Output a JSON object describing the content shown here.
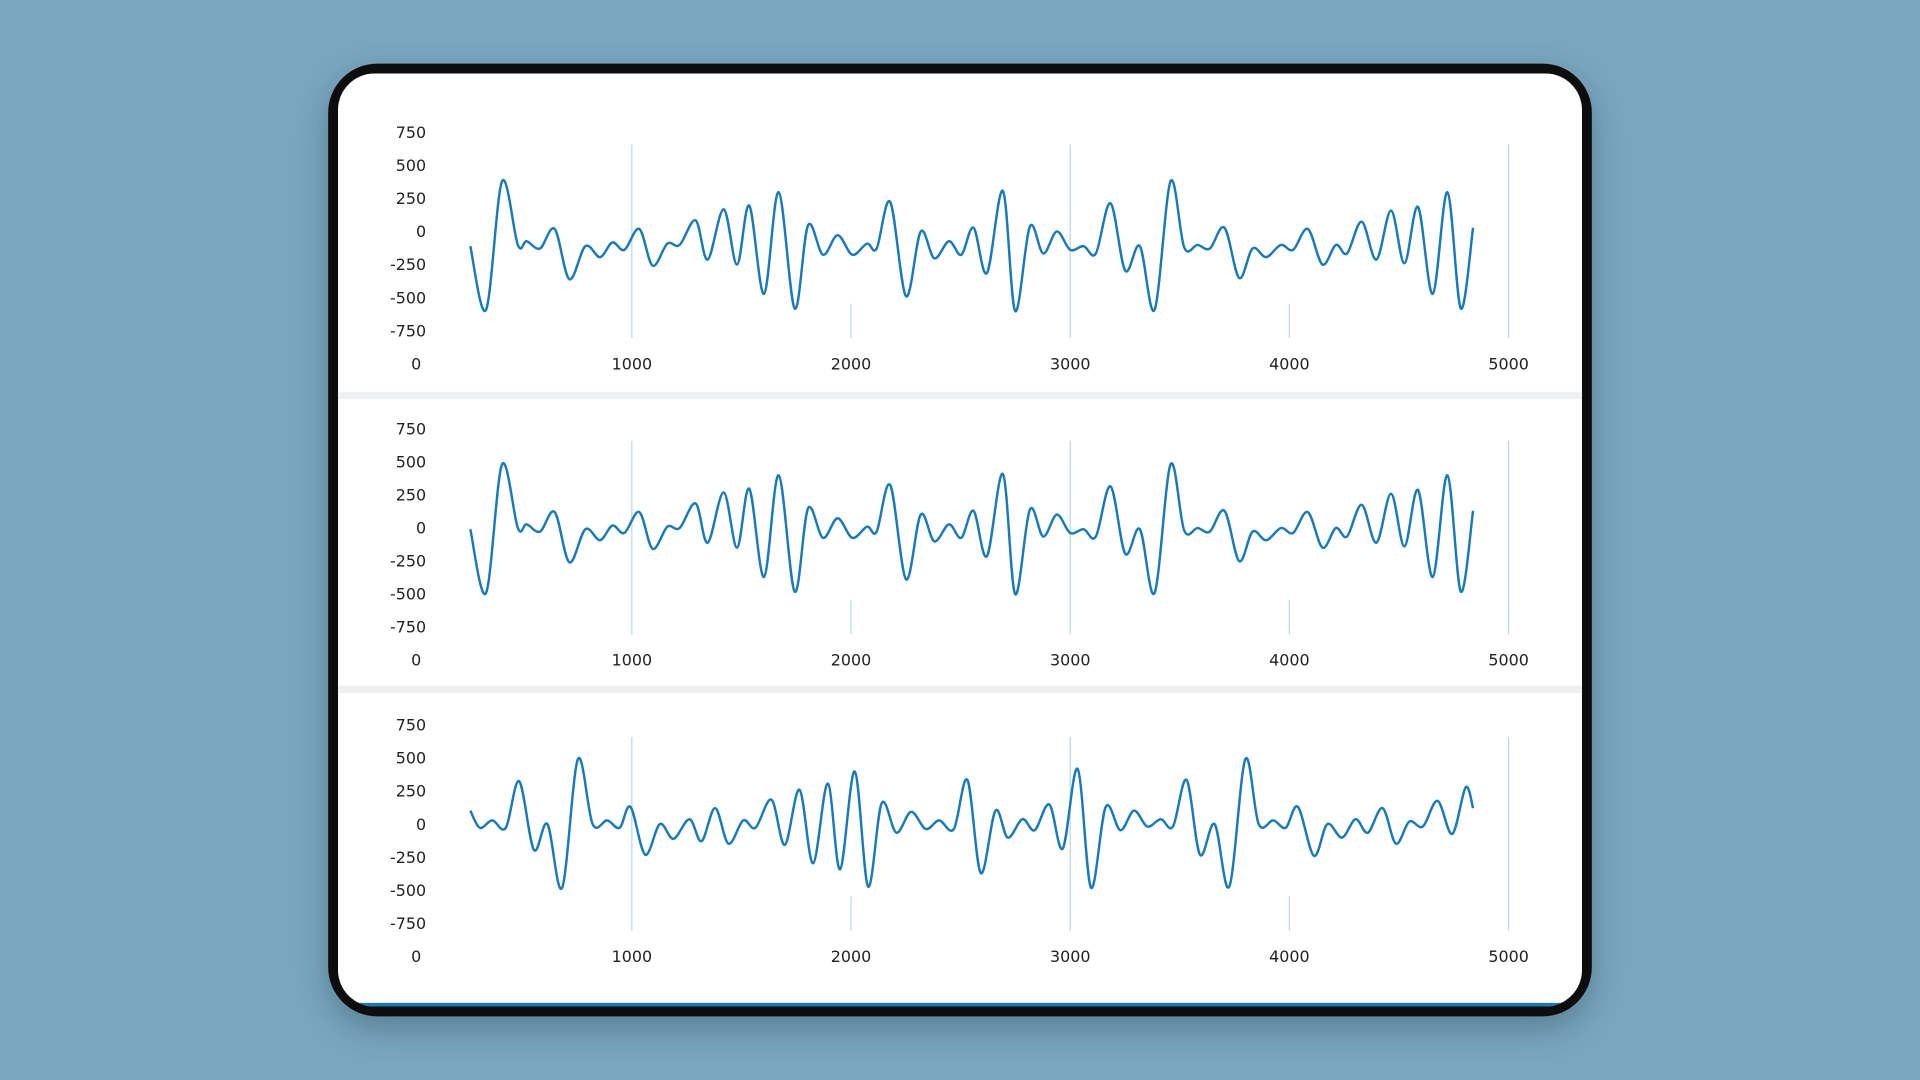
{
  "chart_data": [
    {
      "type": "line",
      "x": [
        263,
        335,
        408,
        480,
        520,
        581,
        648,
        715,
        788,
        855,
        911,
        966,
        1034,
        1095,
        1162,
        1218,
        1291,
        1346,
        1419,
        1480,
        1536,
        1603,
        1670,
        1743,
        1804,
        1872,
        1939,
        2006,
        2073,
        2117,
        2179,
        2251,
        2318,
        2380,
        2447,
        2503,
        2559,
        2620,
        2693,
        2749,
        2816,
        2877,
        2939,
        3000,
        3061,
        3117,
        3184,
        3251,
        3318,
        3385,
        3458,
        3520,
        3581,
        3637,
        3704,
        3771,
        3832,
        3894,
        3961,
        4017,
        4084,
        4151,
        4212,
        4263,
        4330,
        4397,
        4464,
        4525,
        4587,
        4654,
        4721,
        4782,
        4838
      ],
      "series": [
        {
          "color": "#1a7ab5",
          "values": [
            -102,
            -583,
            389,
            -93,
            -65,
            -120,
            28,
            -352,
            -102,
            -185,
            -74,
            -130,
            28,
            -250,
            -83,
            -93,
            93,
            -204,
            176,
            -241,
            204,
            -463,
            306,
            -574,
            56,
            -167,
            -19,
            -167,
            -83,
            -120,
            232,
            -481,
            9,
            -194,
            -65,
            -167,
            37,
            -306,
            315,
            -593,
            46,
            -157,
            9,
            -130,
            -102,
            -157,
            222,
            -287,
            -102,
            -583,
            389,
            -111,
            -93,
            -120,
            37,
            -343,
            -120,
            -185,
            -93,
            -130,
            28,
            -241,
            -93,
            -157,
            83,
            -204,
            167,
            -231,
            194,
            -463,
            306,
            -574,
            37
          ]
        }
      ],
      "xlim": [
        0,
        5000
      ],
      "ylim": [
        -750,
        750
      ],
      "xticks": [
        0,
        1000,
        2000,
        3000,
        4000,
        5000
      ],
      "yticks": [
        750,
        500,
        250,
        0,
        -250,
        -500,
        -750
      ],
      "grid": true
    },
    {
      "type": "line",
      "x": [
        263,
        335,
        408,
        480,
        520,
        581,
        648,
        715,
        788,
        855,
        911,
        966,
        1034,
        1095,
        1162,
        1218,
        1291,
        1346,
        1419,
        1480,
        1536,
        1603,
        1670,
        1743,
        1804,
        1872,
        1939,
        2006,
        2073,
        2117,
        2179,
        2251,
        2318,
        2380,
        2447,
        2503,
        2559,
        2620,
        2693,
        2749,
        2816,
        2877,
        2939,
        3000,
        3061,
        3117,
        3184,
        3251,
        3318,
        3385,
        3458,
        3520,
        3581,
        3637,
        3704,
        3771,
        3832,
        3894,
        3961,
        4017,
        4084,
        4151,
        4212,
        4263,
        4330,
        4397,
        4464,
        4525,
        4587,
        4654,
        4721,
        4782,
        4838
      ],
      "series": [
        {
          "color": "#1a7ab5",
          "values": [
            -2,
            -483,
            489,
            7,
            35,
            -20,
            128,
            -252,
            -2,
            -85,
            26,
            -30,
            128,
            -150,
            17,
            7,
            193,
            -104,
            276,
            -141,
            304,
            -363,
            406,
            -474,
            156,
            -67,
            81,
            -67,
            17,
            -20,
            332,
            -381,
            109,
            -94,
            35,
            -67,
            137,
            -206,
            415,
            -493,
            146,
            -57,
            109,
            -30,
            -2,
            -57,
            322,
            -187,
            -2,
            -483,
            489,
            -11,
            7,
            -20,
            137,
            -243,
            -20,
            -85,
            7,
            -30,
            128,
            -141,
            7,
            -57,
            183,
            -104,
            267,
            -131,
            294,
            -363,
            406,
            -474,
            137
          ]
        }
      ],
      "xlim": [
        0,
        5000
      ],
      "ylim": [
        -750,
        750
      ],
      "xticks": [
        0,
        1000,
        2000,
        3000,
        4000,
        5000
      ],
      "yticks": [
        750,
        500,
        250,
        0,
        -250,
        -500,
        -750
      ],
      "grid": true
    },
    {
      "type": "line",
      "x": [
        263,
        307,
        363,
        425,
        486,
        553,
        615,
        682,
        754,
        821,
        888,
        944,
        994,
        1061,
        1128,
        1190,
        1263,
        1318,
        1380,
        1441,
        1508,
        1564,
        1637,
        1698,
        1765,
        1827,
        1894,
        1950,
        2017,
        2078,
        2140,
        2207,
        2274,
        2341,
        2402,
        2469,
        2531,
        2592,
        2659,
        2715,
        2782,
        2838,
        2905,
        2966,
        3034,
        3095,
        3162,
        3229,
        3291,
        3352,
        3413,
        3469,
        3531,
        3592,
        3659,
        3726,
        3799,
        3860,
        3927,
        3983,
        4039,
        4112,
        4173,
        4240,
        4302,
        4358,
        4425,
        4486,
        4547,
        4609,
        4676,
        4743,
        4804,
        4838
      ],
      "series": [
        {
          "color": "#1a7ab5",
          "values": [
            111,
            -19,
            37,
            -19,
            333,
            -185,
            9,
            -472,
            500,
            9,
            37,
            -19,
            139,
            -222,
            9,
            -102,
            46,
            -120,
            130,
            -139,
            37,
            -19,
            194,
            -148,
            269,
            -287,
            315,
            -333,
            407,
            -463,
            167,
            -56,
            102,
            -28,
            37,
            -28,
            343,
            -361,
            111,
            -93,
            46,
            -37,
            157,
            -176,
            426,
            -472,
            139,
            -37,
            111,
            -9,
            46,
            -9,
            343,
            -222,
            9,
            -463,
            500,
            9,
            37,
            -19,
            139,
            -231,
            9,
            -93,
            46,
            -56,
            130,
            -139,
            28,
            -9,
            185,
            -65,
            287,
            130
          ]
        }
      ],
      "xlim": [
        0,
        5000
      ],
      "ylim": [
        -750,
        750
      ],
      "xticks": [
        0,
        1000,
        2000,
        3000,
        4000,
        5000
      ],
      "yticks": [
        750,
        500,
        250,
        0,
        -250,
        -500,
        -750
      ],
      "grid": true
    }
  ]
}
